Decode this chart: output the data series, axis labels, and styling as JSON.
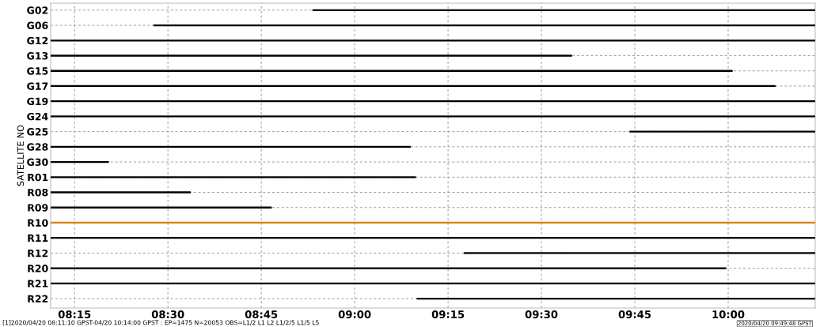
{
  "chart_data": {
    "type": "bar",
    "orientation": "horizontal",
    "ylabel": "SATELLITE NO",
    "categories": [
      "G02",
      "G06",
      "G12",
      "G13",
      "G15",
      "G17",
      "G19",
      "G24",
      "G25",
      "G28",
      "G30",
      "R01",
      "R08",
      "R09",
      "R10",
      "R11",
      "R12",
      "R20",
      "R21",
      "R22"
    ],
    "base": [
      8.887,
      8.461,
      8.186,
      8.186,
      8.186,
      8.186,
      8.186,
      8.186,
      9.736,
      8.186,
      8.186,
      8.186,
      8.186,
      8.186,
      8.186,
      8.186,
      9.292,
      8.186,
      8.186,
      9.166
    ],
    "values": [
      1.346,
      1.772,
      2.047,
      1.396,
      1.826,
      1.941,
      2.047,
      2.047,
      0.497,
      0.964,
      0.156,
      0.978,
      0.375,
      0.592,
      2.047,
      2.047,
      0.941,
      1.809,
      2.047,
      1.067
    ],
    "colors": [
      "#000000",
      "#000000",
      "#000000",
      "#000000",
      "#000000",
      "#000000",
      "#000000",
      "#000000",
      "#000000",
      "#000000",
      "#000000",
      "#000000",
      "#000000",
      "#000000",
      "#d9800f",
      "#000000",
      "#000000",
      "#000000",
      "#000000",
      "#000000"
    ],
    "xlim": [
      8.186,
      10.233
    ],
    "xticks": [
      {
        "value": 8.25,
        "label": "08:15"
      },
      {
        "value": 8.5,
        "label": "08:30"
      },
      {
        "value": 8.75,
        "label": "08:45"
      },
      {
        "value": 9.0,
        "label": "09:00"
      },
      {
        "value": 9.25,
        "label": "09:15"
      },
      {
        "value": 9.5,
        "label": "09:30"
      },
      {
        "value": 9.75,
        "label": "09:45"
      },
      {
        "value": 10.0,
        "label": "10:00"
      }
    ],
    "grid": true,
    "annotations": [
      "[1]2020/04/20 08:11:10 GPST-04/20 10:14:00 GPST : EP=1475 N=20053 OBS=L1/2 L1 L2 L1/2/5 L1/5 L5",
      "2020/04/20 09:49:48 GPST"
    ]
  }
}
